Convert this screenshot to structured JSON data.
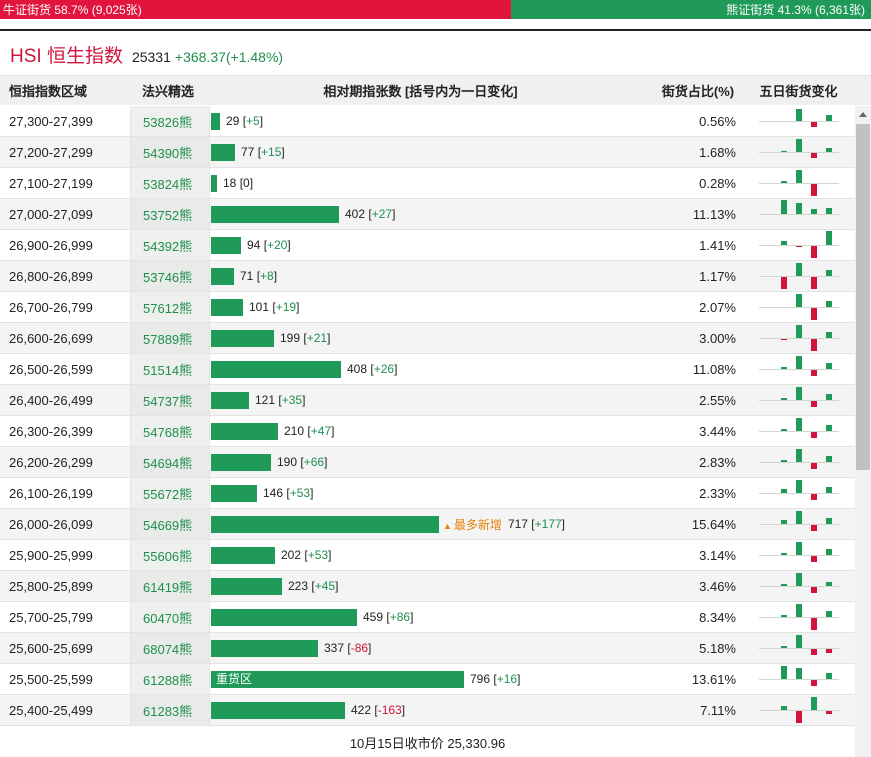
{
  "ratio": {
    "bull_label": "牛证街货 58.7% (9,025张)",
    "bear_label": "熊证街货 41.3% (6,361张)",
    "bull_percent": 58.7,
    "bear_percent": 41.3
  },
  "header": {
    "index_name": "HSI 恒生指数",
    "index_value": "25331",
    "index_change": "+368.37(+1.48%)"
  },
  "table": {
    "headers": {
      "range": "恒指指数区域",
      "pick": "法兴精选",
      "bar": "相对期指张数 [括号内为一日变化]",
      "pct": "街货占比(%)",
      "spark": "五日街货变化"
    },
    "rows": [
      {
        "range": "27,300-27,399",
        "pick": "53826熊",
        "count": "29",
        "change": "+5",
        "dir": "pos",
        "pct": "0.56%",
        "value": 29,
        "spark": [
          0,
          0,
          12,
          -5,
          6
        ]
      },
      {
        "range": "27,200-27,299",
        "pick": "54390熊",
        "count": "77",
        "change": "+15",
        "dir": "pos",
        "pct": "1.68%",
        "value": 77,
        "spark": [
          0,
          1,
          13,
          -5,
          4
        ]
      },
      {
        "range": "27,100-27,199",
        "pick": "53824熊",
        "count": "18",
        "change": "0",
        "dir": "zero",
        "pct": "0.28%",
        "value": 18,
        "spark": [
          0,
          2,
          13,
          -12,
          0
        ]
      },
      {
        "range": "27,000-27,099",
        "pick": "53752熊",
        "count": "402",
        "change": "+27",
        "dir": "pos",
        "pct": "11.13%",
        "value": 402,
        "spark": [
          0,
          14,
          11,
          5,
          6
        ]
      },
      {
        "range": "26,900-26,999",
        "pick": "54392熊",
        "count": "94",
        "change": "+20",
        "dir": "pos",
        "pct": "1.41%",
        "value": 94,
        "spark": [
          0,
          4,
          -1,
          -12,
          14
        ]
      },
      {
        "range": "26,800-26,899",
        "pick": "53746熊",
        "count": "71",
        "change": "+8",
        "dir": "pos",
        "pct": "1.17%",
        "value": 71,
        "spark": [
          0,
          -12,
          13,
          -12,
          6
        ]
      },
      {
        "range": "26,700-26,799",
        "pick": "57612熊",
        "count": "101",
        "change": "+19",
        "dir": "pos",
        "pct": "2.07%",
        "value": 101,
        "spark": [
          0,
          0,
          13,
          -12,
          6
        ]
      },
      {
        "range": "26,600-26,699",
        "pick": "57889熊",
        "count": "199",
        "change": "+21",
        "dir": "pos",
        "pct": "3.00%",
        "value": 199,
        "spark": [
          0,
          -1,
          13,
          -12,
          6
        ]
      },
      {
        "range": "26,500-26,599",
        "pick": "51514熊",
        "count": "408",
        "change": "+26",
        "dir": "pos",
        "pct": "11.08%",
        "value": 408,
        "spark": [
          0,
          2,
          13,
          -6,
          6
        ]
      },
      {
        "range": "26,400-26,499",
        "pick": "54737熊",
        "count": "121",
        "change": "+35",
        "dir": "pos",
        "pct": "2.55%",
        "value": 121,
        "spark": [
          0,
          2,
          13,
          -6,
          6
        ]
      },
      {
        "range": "26,300-26,399",
        "pick": "54768熊",
        "count": "210",
        "change": "+47",
        "dir": "pos",
        "pct": "3.44%",
        "value": 210,
        "spark": [
          0,
          2,
          13,
          -6,
          6
        ]
      },
      {
        "range": "26,200-26,299",
        "pick": "54694熊",
        "count": "190",
        "change": "+66",
        "dir": "pos",
        "pct": "2.83%",
        "value": 190,
        "spark": [
          0,
          2,
          13,
          -6,
          6
        ]
      },
      {
        "range": "26,100-26,199",
        "pick": "55672熊",
        "count": "146",
        "change": "+53",
        "dir": "pos",
        "pct": "2.33%",
        "value": 146,
        "spark": [
          0,
          4,
          13,
          -6,
          6
        ]
      },
      {
        "range": "26,000-26,099",
        "pick": "54669熊",
        "count": "717",
        "change": "+177",
        "dir": "pos",
        "pct": "15.64%",
        "value": 717,
        "spark": [
          0,
          4,
          13,
          -6,
          6
        ],
        "tag": "最多新增"
      },
      {
        "range": "25,900-25,999",
        "pick": "55606熊",
        "count": "202",
        "change": "+53",
        "dir": "pos",
        "pct": "3.14%",
        "value": 202,
        "spark": [
          0,
          2,
          13,
          -6,
          6
        ]
      },
      {
        "range": "25,800-25,899",
        "pick": "61419熊",
        "count": "223",
        "change": "+45",
        "dir": "pos",
        "pct": "3.46%",
        "value": 223,
        "spark": [
          0,
          2,
          13,
          -6,
          4
        ]
      },
      {
        "range": "25,700-25,799",
        "pick": "60470熊",
        "count": "459",
        "change": "+86",
        "dir": "pos",
        "pct": "8.34%",
        "value": 459,
        "spark": [
          0,
          2,
          13,
          -12,
          6
        ]
      },
      {
        "range": "25,600-25,699",
        "pick": "68074熊",
        "count": "337",
        "change": "-86",
        "dir": "neg",
        "pct": "5.18%",
        "value": 337,
        "spark": [
          0,
          2,
          13,
          -6,
          -4
        ]
      },
      {
        "range": "25,500-25,599",
        "pick": "61288熊",
        "count": "796",
        "change": "+16",
        "dir": "pos",
        "pct": "13.61%",
        "value": 796,
        "spark": [
          0,
          13,
          11,
          -6,
          6
        ],
        "inner": "重货区"
      },
      {
        "range": "25,400-25,499",
        "pick": "61283熊",
        "count": "422",
        "change": "-163",
        "dir": "neg",
        "pct": "7.11%",
        "value": 422,
        "spark": [
          0,
          4,
          -12,
          13,
          -3
        ]
      }
    ]
  },
  "footer": {
    "close_label": "10月15日收市价 25,330.96"
  }
}
